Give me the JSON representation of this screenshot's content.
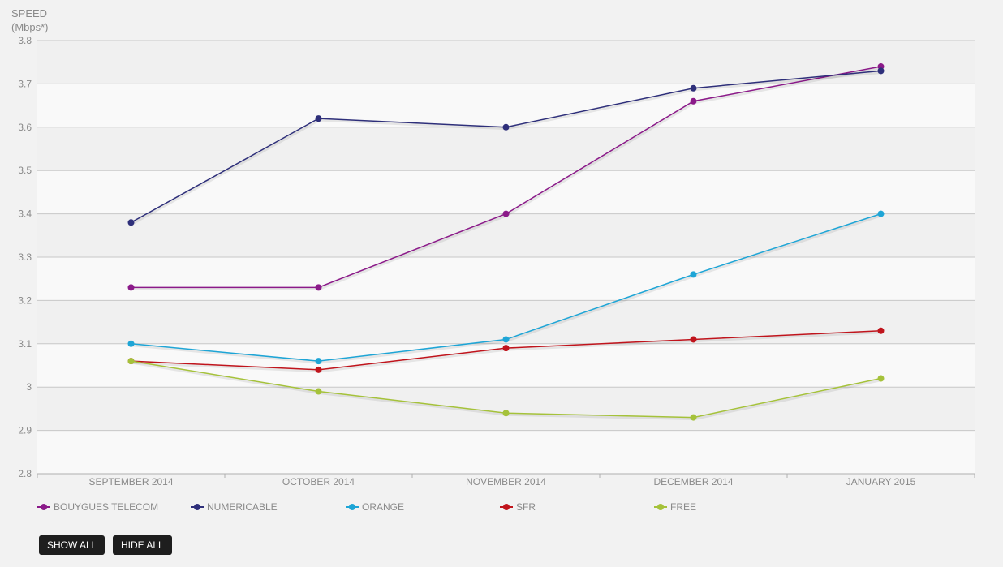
{
  "chart_data": {
    "type": "line",
    "ylabel_line1": "SPEED",
    "ylabel_line2": "(Mbps*)",
    "categories": [
      "SEPTEMBER 2014",
      "OCTOBER 2014",
      "NOVEMBER 2014",
      "DECEMBER 2014",
      "JANUARY 2015"
    ],
    "ylim": [
      2.8,
      3.8
    ],
    "yticks": [
      "2.8",
      "2.9",
      "3",
      "3.1",
      "3.2",
      "3.3",
      "3.4",
      "3.5",
      "3.6",
      "3.7",
      "3.8"
    ],
    "grid": true,
    "legend_position": "bottom",
    "series": [
      {
        "name": "BOUYGUES TELECOM",
        "color": "#8b1a89",
        "values": [
          3.23,
          3.23,
          3.4,
          3.66,
          3.74
        ]
      },
      {
        "name": "NUMERICABLE",
        "color": "#2e2f7a",
        "values": [
          3.38,
          3.62,
          3.6,
          3.69,
          3.73
        ]
      },
      {
        "name": "ORANGE",
        "color": "#1ea5d6",
        "values": [
          3.1,
          3.06,
          3.11,
          3.26,
          3.4
        ]
      },
      {
        "name": "SFR",
        "color": "#c0141c",
        "values": [
          3.06,
          3.04,
          3.09,
          3.11,
          3.13
        ]
      },
      {
        "name": "FREE",
        "color": "#a5c23a",
        "values": [
          3.06,
          2.99,
          2.94,
          2.93,
          3.02
        ]
      }
    ]
  },
  "buttons": {
    "show_all": "SHOW ALL",
    "hide_all": "HIDE ALL"
  }
}
